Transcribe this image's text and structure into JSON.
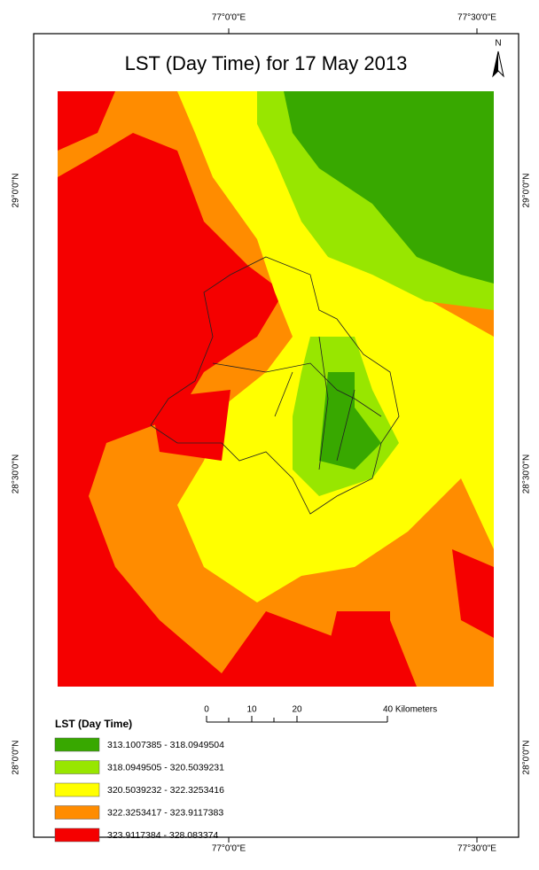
{
  "title": "LST (Day Time) for 17 May 2013",
  "north": "N",
  "graticule": {
    "top": [
      "77°0'0\"E",
      "77°30'0\"E"
    ],
    "bottom": [
      "77°0'0\"E",
      "77°30'0\"E"
    ],
    "left": [
      "29°0'0\"N",
      "28°30'0\"N",
      "28°0'0\"N"
    ],
    "right": [
      "29°0'0\"N",
      "28°30'0\"N",
      "28°0'0\"N"
    ]
  },
  "scale_bar": {
    "labels": [
      "0",
      "10",
      "20",
      "40 Kilometers"
    ]
  },
  "legend": {
    "title": "LST (Day Time)",
    "items": [
      {
        "label": "313.1007385 - 318.0949504",
        "color": "#38a800"
      },
      {
        "label": "318.0949505 - 320.5039231",
        "color": "#98e600"
      },
      {
        "label": "320.5039232 - 322.3253416",
        "color": "#ffff00"
      },
      {
        "label": "322.3253417 - 323.9117383",
        "color": "#ff8c00"
      },
      {
        "label": "323.9117384 - 328.083374",
        "color": "#f50000"
      }
    ]
  }
}
